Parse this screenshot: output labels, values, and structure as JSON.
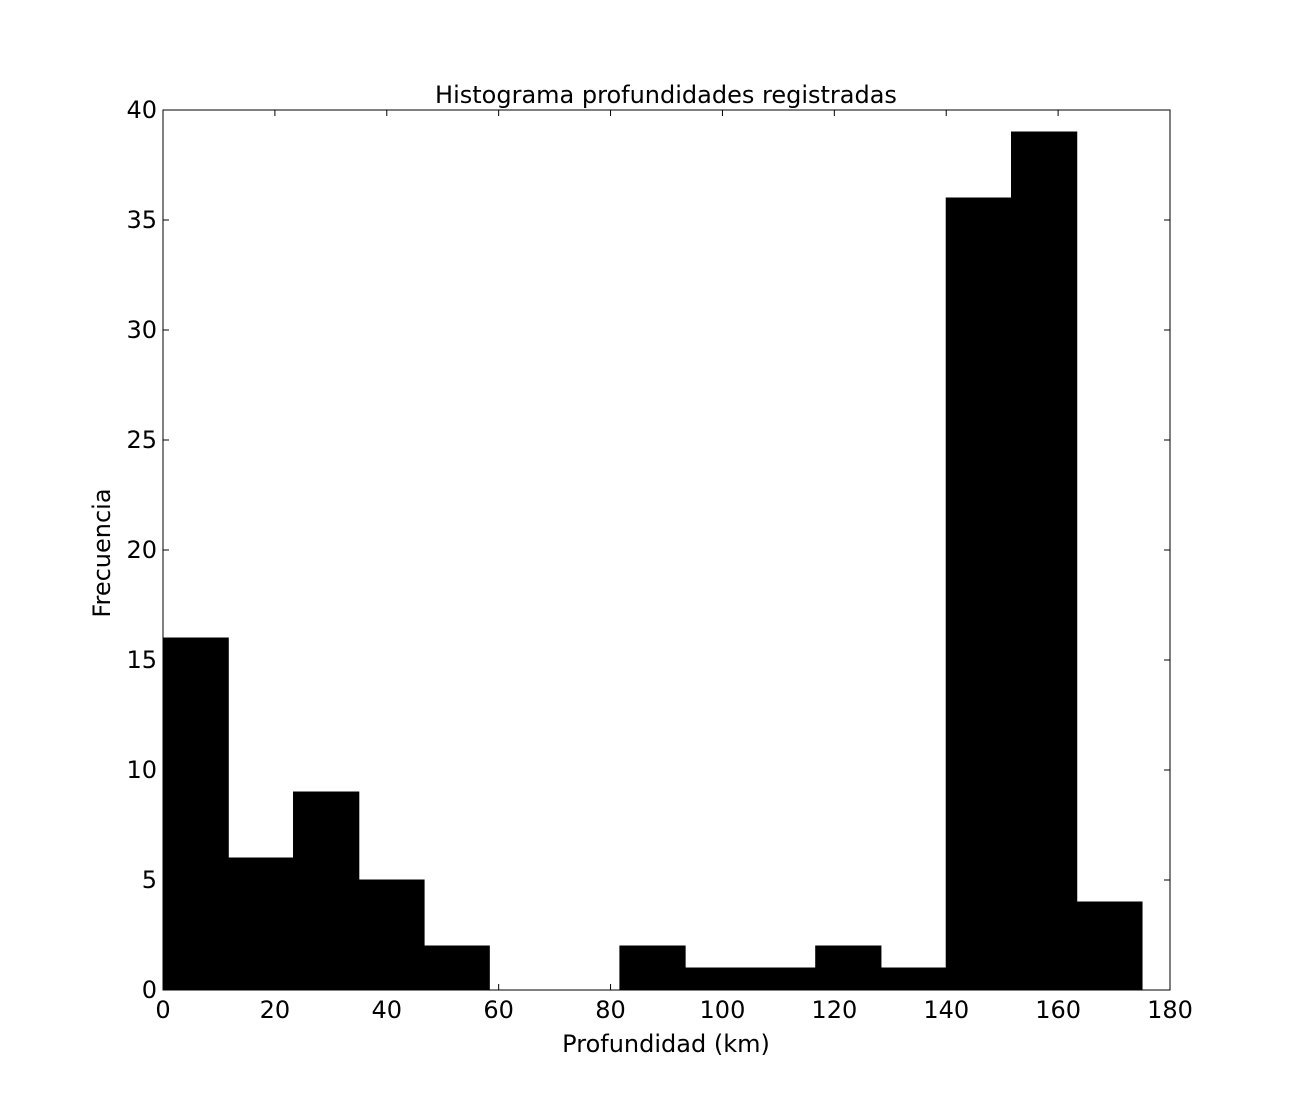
{
  "chart_data": {
    "type": "histogram",
    "title": "Histograma profundidades registradas",
    "x_label": "Profundidad (km)",
    "y_label": "Frecuencia",
    "bins": [
      0,
      11.67,
      23.33,
      35,
      46.67,
      58.33,
      70,
      81.67,
      93.33,
      105,
      116.67,
      128.33,
      140,
      151.67,
      163.33,
      175
    ],
    "values": [
      16,
      6,
      9,
      5,
      2,
      0,
      0,
      2,
      1,
      1,
      2,
      1,
      36,
      39,
      4
    ],
    "color": "#000000",
    "xlim": [
      0,
      180
    ],
    "xticks": [
      0,
      20,
      40,
      60,
      80,
      100,
      120,
      140,
      160,
      180
    ],
    "ylim": [
      0,
      40
    ],
    "yticks": [
      0,
      5,
      10,
      15,
      20,
      25,
      30,
      35,
      40
    ],
    "grid": false
  }
}
